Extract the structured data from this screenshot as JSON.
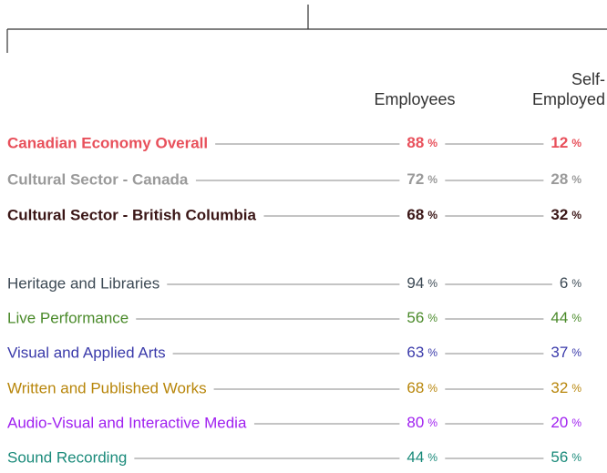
{
  "header": {
    "employees": "Employees",
    "self_employed": [
      "Self-",
      "Employed"
    ]
  },
  "unit": "%",
  "groups": [
    {
      "bold": true,
      "rows": [
        {
          "label": "Canadian Economy Overall",
          "employees": 88,
          "self_employed": 12,
          "color": "#e8505b"
        },
        {
          "label": "Cultural Sector - Canada",
          "employees": 72,
          "self_employed": 28,
          "color": "#9a9a9a"
        },
        {
          "label": "Cultural Sector - British Columbia",
          "employees": 68,
          "self_employed": 32,
          "color": "#3a1616"
        }
      ]
    },
    {
      "bold": false,
      "rows": [
        {
          "label": "Heritage and Libraries",
          "employees": 94,
          "self_employed": 6,
          "color": "#3d4a55"
        },
        {
          "label": "Live Performance",
          "employees": 56,
          "self_employed": 44,
          "color": "#4a8a2a"
        },
        {
          "label": "Visual and Applied Arts",
          "employees": 63,
          "self_employed": 37,
          "color": "#3a3aaa"
        },
        {
          "label": "Written and Published Works",
          "employees": 68,
          "self_employed": 32,
          "color": "#b8860b"
        },
        {
          "label": "Audio-Visual and Interactive Media",
          "employees": 80,
          "self_employed": 20,
          "color": "#a020f0"
        },
        {
          "label": "Sound Recording",
          "employees": 44,
          "self_employed": 56,
          "color": "#1a8a7a"
        }
      ]
    }
  ]
}
